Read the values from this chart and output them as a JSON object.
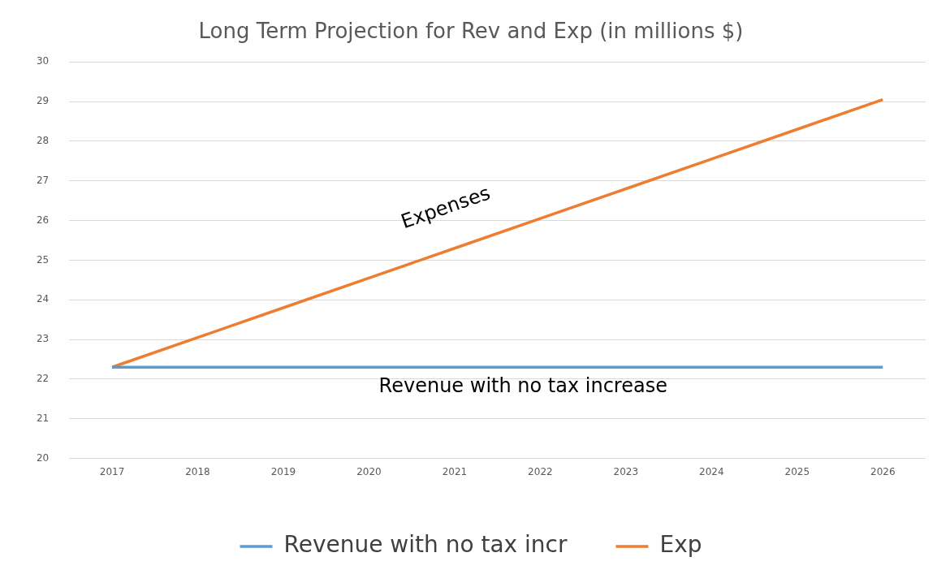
{
  "chart_data": {
    "type": "line",
    "title": "Long Term Projection for Rev and Exp (in millions $)",
    "categories": [
      "2017",
      "2018",
      "2019",
      "2020",
      "2021",
      "2022",
      "2023",
      "2024",
      "2025",
      "2026"
    ],
    "series": [
      {
        "name": "Revenue with no tax incr",
        "color": "#5b9bd5",
        "values": [
          22.3,
          22.3,
          22.3,
          22.3,
          22.3,
          22.3,
          22.3,
          22.3,
          22.3,
          22.3
        ]
      },
      {
        "name": "Exp",
        "color": "#ed7d31",
        "values": [
          22.3,
          23.05,
          23.8,
          24.55,
          25.3,
          26.05,
          26.8,
          27.55,
          28.3,
          29.05
        ]
      }
    ],
    "ylim": [
      20,
      30
    ],
    "yticks": [
      20,
      21,
      22,
      23,
      24,
      25,
      26,
      27,
      28,
      29,
      30
    ],
    "grid": "y",
    "legend": "bottom",
    "marker": "none",
    "line_style": "solid",
    "annotations": [
      "Expenses",
      "Revenue with no tax increase"
    ]
  }
}
